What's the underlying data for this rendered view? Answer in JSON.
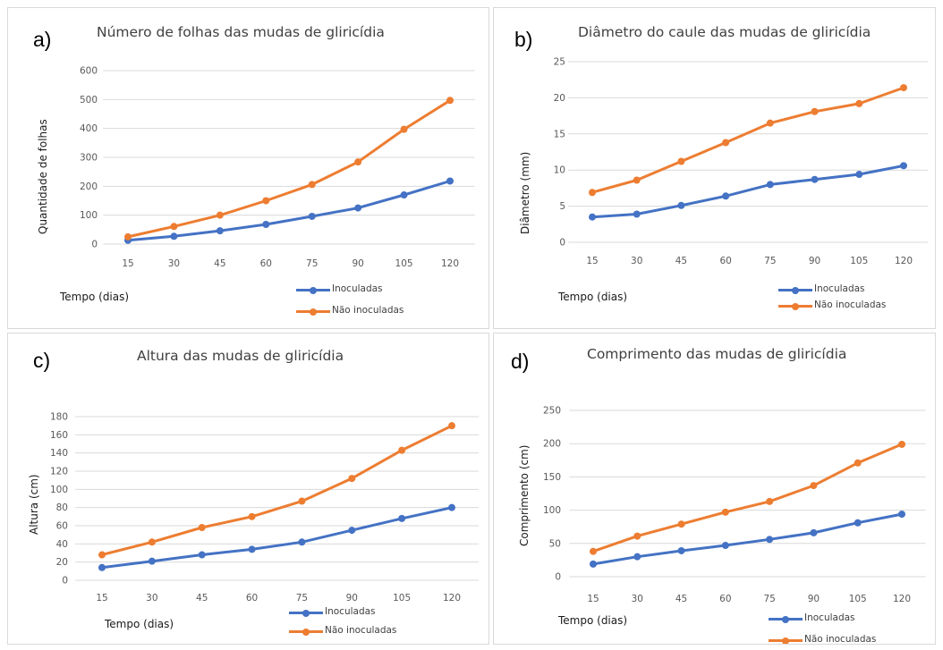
{
  "colors": {
    "inoculadas": "#4472C4",
    "nao_inoculadas": "#ED7D31",
    "grid": "#d9d9d9",
    "axis_text": "#595959"
  },
  "chart_data": [
    {
      "letter": "a)",
      "type": "line",
      "title": "Número de folhas das mudas de gliricídia",
      "xlabel": "Tempo (dias)",
      "ylabel": "Quantidade de folhas",
      "categories": [
        "15",
        "30",
        "45",
        "60",
        "75",
        "90",
        "105",
        "120"
      ],
      "ylim": [
        0,
        600
      ],
      "yticks": [
        0,
        100,
        200,
        300,
        400,
        500,
        600
      ],
      "grid": true,
      "series": [
        {
          "name": "Inoculadas",
          "values": [
            13,
            27,
            46,
            68,
            96,
            125,
            170,
            218
          ]
        },
        {
          "name": "Não inoculadas",
          "values": [
            25,
            61,
            100,
            150,
            206,
            284,
            397,
            497
          ]
        }
      ]
    },
    {
      "letter": "b)",
      "type": "line",
      "title": "Diâmetro do caule das mudas de gliricídia",
      "xlabel": "Tempo (dias)",
      "ylabel": "Diâmetro (mm)",
      "categories": [
        "15",
        "30",
        "45",
        "60",
        "75",
        "90",
        "105",
        "120"
      ],
      "ylim": [
        0,
        25
      ],
      "yticks": [
        0,
        5,
        10,
        15,
        20,
        25
      ],
      "grid": true,
      "series": [
        {
          "name": "Inoculadas",
          "values": [
            3.5,
            3.9,
            5.1,
            6.4,
            8.0,
            8.7,
            9.4,
            10.6
          ]
        },
        {
          "name": "Não inoculadas",
          "values": [
            6.9,
            8.6,
            11.2,
            13.8,
            16.5,
            18.1,
            19.2,
            21.4
          ]
        }
      ]
    },
    {
      "letter": "c)",
      "type": "line",
      "title": "Altura das mudas de gliricídia",
      "xlabel": "Tempo (dias)",
      "ylabel": "Altura (cm)",
      "categories": [
        "15",
        "30",
        "45",
        "60",
        "75",
        "90",
        "105",
        "120"
      ],
      "ylim": [
        0,
        180
      ],
      "yticks": [
        0,
        20,
        40,
        60,
        80,
        100,
        120,
        140,
        160,
        180
      ],
      "grid": true,
      "series": [
        {
          "name": "Inoculadas",
          "values": [
            14,
            21,
            28,
            34,
            42,
            55,
            68,
            80
          ]
        },
        {
          "name": "Não inoculadas",
          "values": [
            28,
            42,
            58,
            70,
            87,
            112,
            143,
            170
          ]
        }
      ]
    },
    {
      "letter": "d)",
      "type": "line",
      "title": "Comprimento das mudas de gliricídia",
      "xlabel": "Tempo (dias)",
      "ylabel": "Comprimento (cm)",
      "categories": [
        "15",
        "30",
        "45",
        "60",
        "75",
        "90",
        "105",
        "120"
      ],
      "ylim": [
        0,
        250
      ],
      "yticks": [
        0,
        50,
        100,
        150,
        200,
        250
      ],
      "grid": true,
      "series": [
        {
          "name": "Inoculadas",
          "values": [
            19,
            30,
            39,
            47,
            56,
            66,
            81,
            94
          ]
        },
        {
          "name": "Não inoculadas",
          "values": [
            38,
            61,
            79,
            97,
            113,
            137,
            171,
            199
          ]
        }
      ]
    }
  ]
}
